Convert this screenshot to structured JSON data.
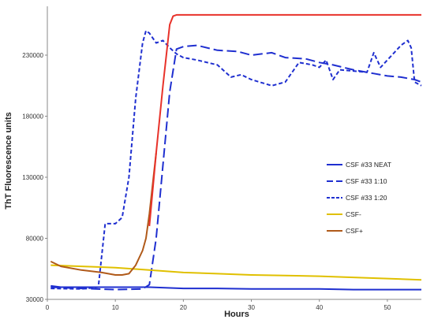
{
  "chart_data": {
    "type": "line",
    "xlabel": "Hours",
    "ylabel": "ThT Fluorescence units",
    "xlim": [
      0,
      55
    ],
    "ylim": [
      30000,
      270000
    ],
    "x_ticks": [
      0,
      10,
      20,
      30,
      40,
      50
    ],
    "y_ticks": [
      30000,
      80000,
      130000,
      180000,
      230000
    ],
    "grid": false,
    "legend_position": "right",
    "series": [
      {
        "name": "CSF #33 NEAT",
        "color": "#1f2fd0",
        "style": "solid",
        "x": [
          0.5,
          2,
          5,
          8,
          12,
          15,
          20,
          25,
          30,
          35,
          40,
          45,
          50,
          55
        ],
        "y": [
          41000,
          40000,
          40000,
          40000,
          40000,
          40000,
          39000,
          39000,
          38500,
          38500,
          38500,
          38000,
          38000,
          38000
        ]
      },
      {
        "name": "CSF #33 1:10",
        "color": "#1f2fd0",
        "style": "dashed",
        "x": [
          0.5,
          5,
          10,
          14,
          15,
          16,
          17,
          18,
          19,
          20,
          22,
          25,
          28,
          30,
          33,
          35,
          38,
          40,
          42,
          45,
          48,
          50,
          52,
          54,
          55
        ],
        "y": [
          40000,
          39000,
          38000,
          38500,
          42000,
          80000,
          140000,
          200000,
          235000,
          237000,
          238000,
          234000,
          233000,
          230000,
          232000,
          228000,
          227000,
          224000,
          222000,
          218000,
          215000,
          213000,
          212000,
          210000,
          208000
        ]
      },
      {
        "name": "CSF #33 1:20",
        "color": "#1f2fd0",
        "style": "dotted",
        "x": [
          0.5,
          5,
          7.5,
          8.5,
          10,
          11,
          12,
          13,
          14,
          14.5,
          15,
          16,
          17,
          18,
          19,
          20,
          22,
          25,
          27,
          28.5,
          30,
          33,
          35,
          37,
          39,
          40,
          41,
          42,
          43,
          45,
          47,
          48,
          49,
          50,
          51,
          52,
          53,
          53.5,
          54,
          55
        ],
        "y": [
          39000,
          38500,
          40000,
          92000,
          92000,
          97000,
          130000,
          195000,
          240000,
          250000,
          248000,
          240000,
          242000,
          236000,
          231000,
          228000,
          226000,
          222000,
          212000,
          214000,
          210000,
          205000,
          208000,
          224000,
          222000,
          220000,
          226000,
          210000,
          218000,
          217000,
          216000,
          232000,
          220000,
          226000,
          232000,
          238000,
          242000,
          236000,
          208000,
          205000
        ]
      },
      {
        "name": "CSF-",
        "color": "#e0c000",
        "style": "solid",
        "x": [
          0.5,
          5,
          10,
          15,
          20,
          25,
          30,
          35,
          40,
          45,
          50,
          55
        ],
        "y": [
          58000,
          57000,
          56000,
          54000,
          52000,
          51000,
          50000,
          49500,
          49000,
          48000,
          47000,
          46000
        ]
      },
      {
        "name": "CSF+",
        "color": "#b05a1a",
        "style": "solid",
        "x": [
          0.5,
          2,
          5,
          8,
          10,
          11,
          12,
          13,
          14,
          14.5,
          15,
          16
        ],
        "y": [
          61000,
          57000,
          54000,
          52000,
          50000,
          50000,
          51000,
          58000,
          70000,
          80000,
          100000,
          150000
        ]
      },
      {
        "name": "",
        "color": "#e8322a",
        "style": "solid",
        "x": [
          15,
          16,
          17,
          17.5,
          18,
          18.5,
          19,
          20,
          25,
          30,
          35,
          40,
          45,
          50,
          55
        ],
        "y": [
          90000,
          150000,
          205000,
          230000,
          255000,
          262000,
          263000,
          263000,
          263000,
          263000,
          263000,
          263000,
          263000,
          263000,
          263000
        ]
      }
    ]
  }
}
